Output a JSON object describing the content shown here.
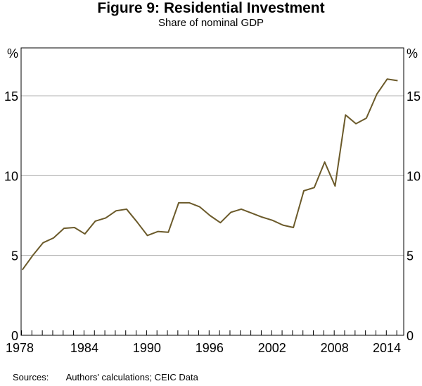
{
  "title": "Figure 9: Residential Investment",
  "subtitle": "Share of nominal GDP",
  "sources_label": "Sources:",
  "sources_text": "Authors' calculations; CEIC Data",
  "chart_data": {
    "type": "line",
    "title": "Figure 9: Residential Investment",
    "subtitle": "Share of nominal GDP",
    "ylabel_left": "%",
    "ylabel_right": "%",
    "ylim": [
      0,
      18
    ],
    "yticks": [
      0,
      5,
      10,
      15
    ],
    "xlim": [
      1978,
      2014
    ],
    "xticks": [
      1978,
      1984,
      1990,
      1996,
      2002,
      2008,
      2014
    ],
    "grid": true,
    "line_color": "#6b5a2a",
    "x": [
      1978,
      1979,
      1980,
      1981,
      1982,
      1983,
      1984,
      1985,
      1986,
      1987,
      1988,
      1989,
      1990,
      1991,
      1992,
      1993,
      1994,
      1995,
      1996,
      1997,
      1998,
      1999,
      2000,
      2001,
      2002,
      2003,
      2004,
      2005,
      2006,
      2007,
      2008,
      2009,
      2010,
      2011,
      2012,
      2013,
      2014
    ],
    "values": [
      4.1,
      5.0,
      5.8,
      6.1,
      6.7,
      6.75,
      6.35,
      7.15,
      7.35,
      7.8,
      7.9,
      7.1,
      6.25,
      6.5,
      6.45,
      8.3,
      8.3,
      8.05,
      7.5,
      7.05,
      7.7,
      7.9,
      7.65,
      7.4,
      7.2,
      6.9,
      6.75,
      9.05,
      9.25,
      10.85,
      9.35,
      13.8,
      13.25,
      13.6,
      15.1,
      16.05,
      15.95
    ]
  }
}
